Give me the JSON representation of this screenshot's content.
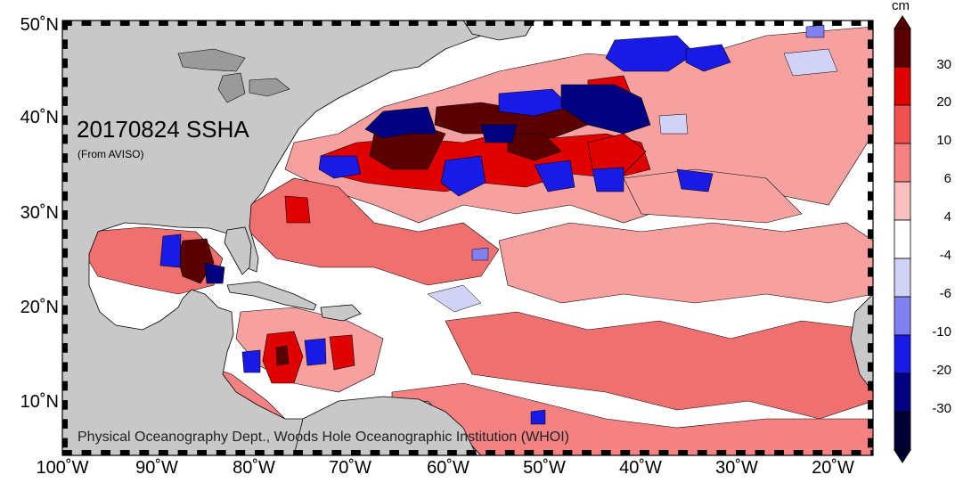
{
  "map": {
    "title": "20170824 SSHA",
    "subtitle": "(From AVISO)",
    "credit": "Physical Oceanography Dept., Woods Hole Oceanographic Institution (WHOI)",
    "lat_labels": [
      "50˚N",
      "40˚N",
      "30˚N",
      "20˚N",
      "10˚N"
    ],
    "lon_labels": [
      "100˚W",
      "90˚W",
      "80˚W",
      "70˚W",
      "60˚W",
      "50˚W",
      "40˚W",
      "30˚W",
      "20˚W"
    ],
    "colors": {
      "land": "#c8c8c8",
      "border": "#000000",
      "ocean_neutral": "#ffffff"
    }
  },
  "colorbar": {
    "unit": "cm",
    "tick_labels": [
      "30",
      "20",
      "10",
      "6",
      "4",
      "-4",
      "-6",
      "-10",
      "-20",
      "-30"
    ],
    "segments": [
      {
        "range": ">30",
        "color": "#5a0000"
      },
      {
        "range": "20-30",
        "color": "#e00000"
      },
      {
        "range": "10-20",
        "color": "#f05050"
      },
      {
        "range": "6-10",
        "color": "#f58282"
      },
      {
        "range": "4-6",
        "color": "#fac0c0"
      },
      {
        "range": "-4-4",
        "color": "#ffffff"
      },
      {
        "range": "-6--4",
        "color": "#d2d2f7"
      },
      {
        "range": "-10--6",
        "color": "#8080f0"
      },
      {
        "range": "-20--10",
        "color": "#1a1ae6"
      },
      {
        "range": "-30--20",
        "color": "#000080"
      },
      {
        "range": "<-30",
        "color": "#000033"
      }
    ]
  }
}
